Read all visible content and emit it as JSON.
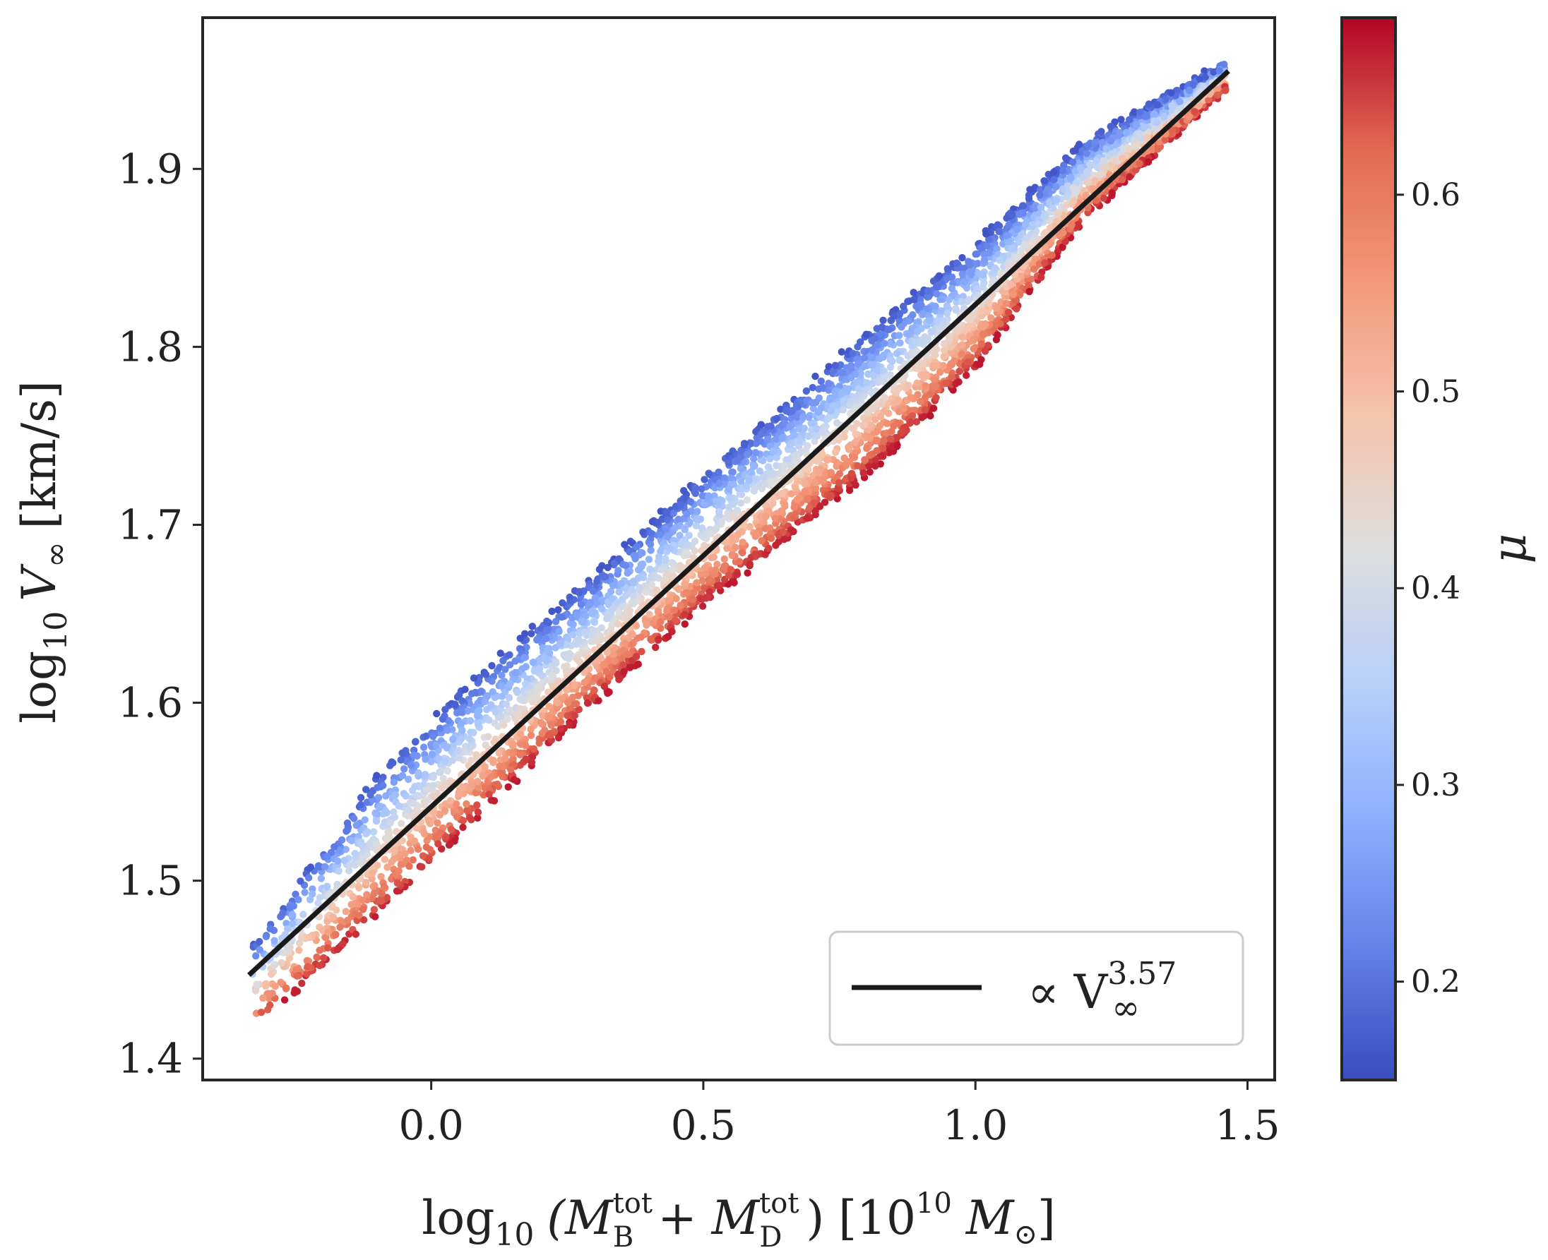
{
  "chart_data": {
    "type": "scatter",
    "title": "",
    "xlabel": {
      "prefix": "log",
      "sub": "10",
      "body": "(M",
      "term1_sup": "tot",
      "term1_sub": "B",
      "plus": "+ M",
      "term2_sup": "tot",
      "term2_sub": "D",
      "close": ")",
      "unit_open": "[10",
      "unit_exp": "10",
      "unit_rest": "M",
      "unit_sun": "⊙",
      "unit_close": "]"
    },
    "ylabel": {
      "prefix": "log",
      "sub": "10",
      "body": "V",
      "body_sub": "∞",
      "unit": "[km/s]"
    },
    "xlim": [
      -0.42,
      1.55
    ],
    "ylim": [
      1.388,
      1.985
    ],
    "xticks": [
      "0.0",
      "0.5",
      "1.0",
      "1.5"
    ],
    "yticks": [
      "1.4",
      "1.5",
      "1.6",
      "1.7",
      "1.8",
      "1.9"
    ],
    "grid": false,
    "colorbar": {
      "label": "μ",
      "range": [
        0.15,
        0.69
      ],
      "ticks": [
        "0.2",
        "0.3",
        "0.4",
        "0.5",
        "0.6"
      ],
      "colormap": "coolwarm",
      "colors": [
        "#3b4cc0",
        "#6282ea",
        "#8db0fe",
        "#b8d0f9",
        "#dddddd",
        "#f5c4ac",
        "#f4987a",
        "#e36a53",
        "#b40426"
      ]
    },
    "scatter_band": {
      "description_points": "mass-velocity relation colored by mu",
      "x_range": [
        -0.33,
        1.46
      ],
      "y_at_xmin": [
        1.415,
        1.462
      ],
      "y_at_xmax": [
        1.945,
        1.96
      ],
      "upper_edge": [
        [
          -0.33,
          1.462
        ],
        [
          -0.1,
          1.56
        ],
        [
          0.1,
          1.62
        ],
        [
          0.3,
          1.672
        ],
        [
          0.5,
          1.728
        ],
        [
          0.8,
          1.808
        ],
        [
          1.0,
          1.858
        ],
        [
          1.2,
          1.915
        ],
        [
          1.46,
          1.96
        ]
      ],
      "lower_edge": [
        [
          -0.33,
          1.415
        ],
        [
          -0.1,
          1.48
        ],
        [
          0.1,
          1.54
        ],
        [
          0.3,
          1.6
        ],
        [
          0.5,
          1.655
        ],
        [
          0.8,
          1.728
        ],
        [
          1.0,
          1.788
        ],
        [
          1.2,
          1.872
        ],
        [
          1.46,
          1.945
        ]
      ],
      "mu_top": 0.16,
      "mu_bottom": 0.68
    },
    "series": [
      {
        "name": "∝ V∞^3.57",
        "type": "line",
        "color": "#1a1a1a",
        "x": [
          -0.335,
          1.465
        ],
        "y": [
          1.447,
          1.955
        ]
      }
    ],
    "legend": {
      "position": "bottom-right",
      "entries": [
        {
          "prefix": "∝ V",
          "sub": "∞",
          "sup": "3.57"
        }
      ]
    }
  }
}
